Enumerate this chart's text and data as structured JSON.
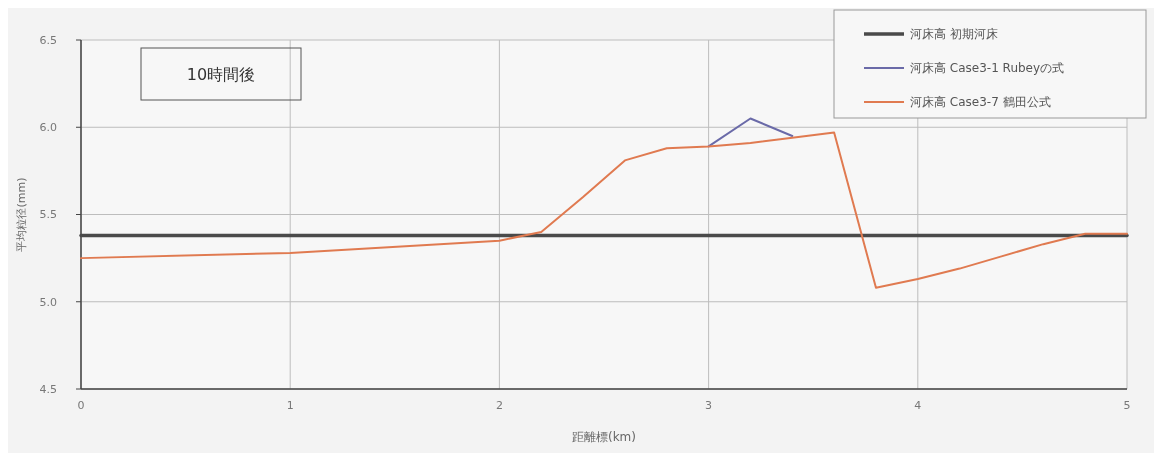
{
  "chart_data": {
    "type": "line",
    "xlabel": "距離標(km)",
    "ylabel": "平均粒径(mm)",
    "annotations": [
      "10時間後"
    ],
    "xlim": [
      0,
      5
    ],
    "xticks": [
      0,
      1,
      2,
      3,
      4,
      5
    ],
    "ylim": [
      4.5,
      6.5
    ],
    "yticks": [
      {
        "value": 4.5,
        "label": "4.5"
      },
      {
        "value": 5,
        "label": "5.0"
      },
      {
        "value": 5.5,
        "label": "5.5"
      },
      {
        "value": 6,
        "label": "6.0"
      },
      {
        "value": 6.5,
        "label": "6.5"
      }
    ],
    "grid": true,
    "legend": "top right",
    "marker": "none",
    "line_style": "solid",
    "series": [
      {
        "name": "河床高 初期河床",
        "color": "#4a4a4a",
        "x": [
          0,
          5
        ],
        "values": [
          5.38,
          5.38
        ]
      },
      {
        "name": "河床高 Case3-1 Rubeyの式",
        "color": "#6a6aa8",
        "x": [
          3,
          3.2,
          3.4
        ],
        "values": [
          5.89,
          6.05,
          5.95
        ]
      },
      {
        "name": "河床高 Case3-7 鶴田公式",
        "color": "#e07a50",
        "x": [
          0,
          1,
          2,
          2.2,
          2.4,
          2.6,
          2.8,
          3,
          3.2,
          3.4,
          3.6,
          3.8,
          4,
          4.2,
          4.4,
          4.6,
          4.8,
          5
        ],
        "values": [
          5.25,
          5.28,
          5.35,
          5.4,
          5.6,
          5.81,
          5.88,
          5.89,
          5.91,
          5.94,
          5.97,
          5.08,
          5.13,
          5.19,
          5.26,
          5.33,
          5.39,
          5.39
        ]
      }
    ]
  }
}
